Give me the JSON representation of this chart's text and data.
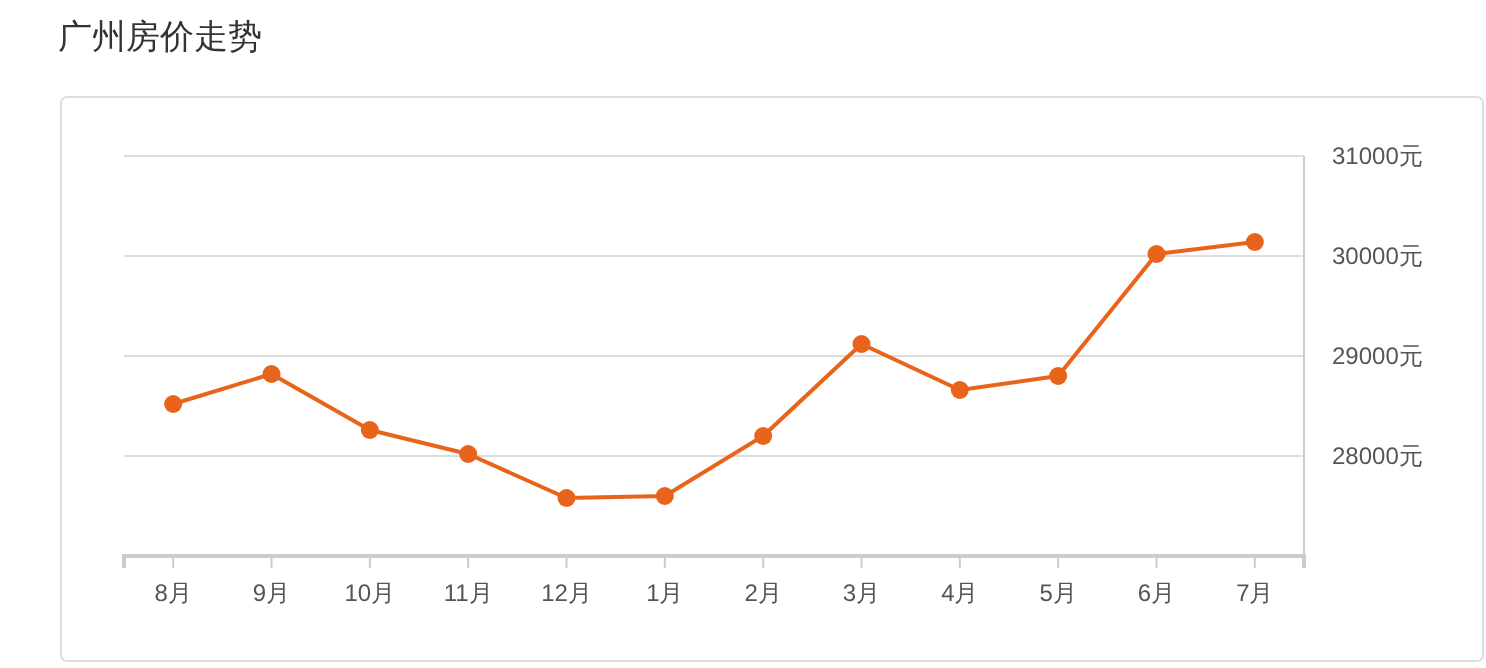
{
  "chart_data": {
    "type": "line",
    "title": "广州房价走势",
    "categories": [
      "8月",
      "9月",
      "10月",
      "11月",
      "12月",
      "1月",
      "2月",
      "3月",
      "4月",
      "5月",
      "6月",
      "7月"
    ],
    "series": [
      {
        "color": "#e8641b",
        "values": [
          28520,
          28820,
          28260,
          28020,
          27580,
          27600,
          28200,
          29120,
          28660,
          28800,
          30020,
          30140
        ]
      }
    ],
    "ylim": [
      27000,
      31000
    ],
    "yticks": [
      {
        "value": 28000,
        "label": "28000元"
      },
      {
        "value": 29000,
        "label": "29000元"
      },
      {
        "value": 30000,
        "label": "30000元"
      },
      {
        "value": 31000,
        "label": "31000元"
      }
    ],
    "grid": "y",
    "marker": "circle",
    "line_style": "solid"
  }
}
